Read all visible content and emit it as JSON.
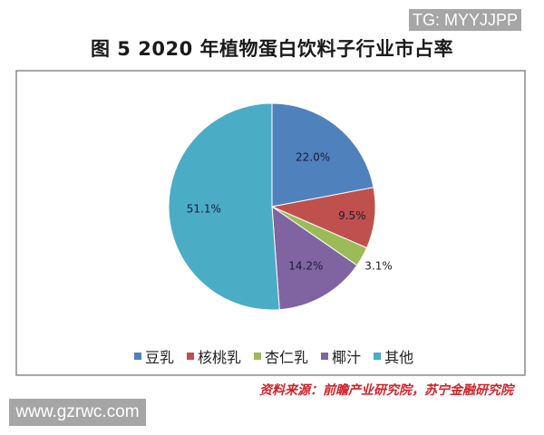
{
  "badge": {
    "text": "TG: MYYJJPP"
  },
  "title": "图 5  2020 年植物蛋白饮料子行业市占率",
  "source": "资料来源：前瞻产业研究院，苏宁金融研究院",
  "watermark": "www.gzrwc.com",
  "chart_data": {
    "type": "pie",
    "title": "图 5  2020 年植物蛋白饮料子行业市占率",
    "categories": [
      "豆乳",
      "核桃乳",
      "杏仁乳",
      "椰汁",
      "其他"
    ],
    "values": [
      22.0,
      9.5,
      3.1,
      14.2,
      51.1
    ],
    "labels": [
      "22.0%",
      "9.5%",
      "3.1%",
      "14.2%",
      "51.1%"
    ],
    "colors": [
      "#4f81bd",
      "#c0504d",
      "#9bbb59",
      "#8064a2",
      "#4bacc6"
    ],
    "start_angle": "12 o'clock, clockwise",
    "legend_position": "bottom"
  }
}
